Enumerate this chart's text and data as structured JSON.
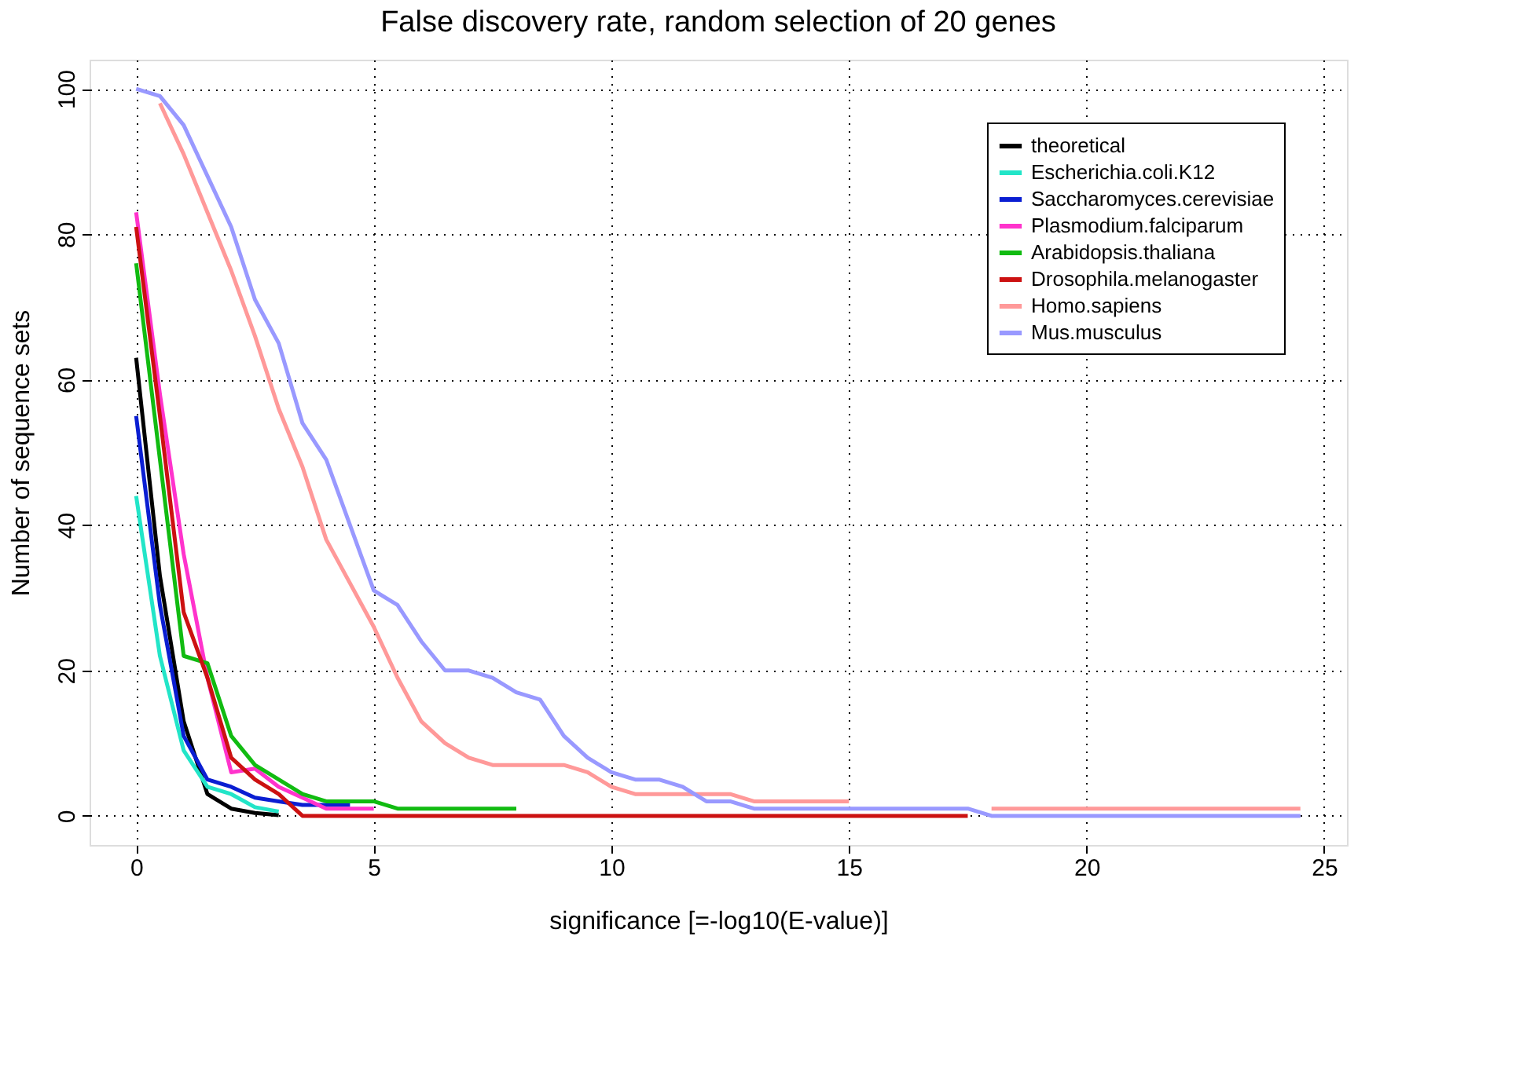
{
  "chart_data": {
    "type": "line",
    "title": "False discovery rate, random selection of  20 genes",
    "xlabel": "significance [=-log10(E-value)]",
    "ylabel": "Number of sequence sets",
    "x": [
      0,
      0.5,
      1,
      1.5,
      2,
      2.5,
      3,
      3.5,
      4,
      4.5,
      5,
      5.5,
      6,
      6.5,
      7,
      7.5,
      8,
      8.5,
      9,
      9.5,
      10,
      10.5,
      11,
      11.5,
      12,
      12.5,
      13,
      13.5,
      14,
      14.5,
      15,
      15.5,
      16,
      16.5,
      17,
      17.5,
      18,
      18.5,
      19,
      19.5,
      20,
      20.5,
      21,
      21.5,
      22,
      22.5,
      23,
      23.5,
      24,
      24.5
    ],
    "series": [
      {
        "name": "theoretical",
        "color": "#000000",
        "values": [
          63,
          33,
          13,
          3,
          1,
          0.4,
          0.1,
          null,
          null,
          null,
          null,
          null,
          null,
          null,
          null,
          null,
          null,
          null,
          null,
          null,
          null,
          null,
          null,
          null,
          null,
          null,
          null,
          null,
          null,
          null,
          null,
          null,
          null,
          null,
          null,
          null,
          null,
          null,
          null,
          null,
          null,
          null,
          null,
          null,
          null,
          null,
          null,
          null,
          null,
          null
        ]
      },
      {
        "name": "Escherichia.coli.K12",
        "color": "#22e5c8",
        "values": [
          44,
          22,
          9,
          4,
          3,
          1.2,
          0.6,
          null,
          null,
          null,
          null,
          null,
          null,
          null,
          null,
          null,
          null,
          null,
          null,
          null,
          null,
          null,
          null,
          null,
          null,
          null,
          null,
          null,
          null,
          null,
          null,
          null,
          null,
          null,
          null,
          null,
          null,
          null,
          null,
          null,
          null,
          null,
          null,
          null,
          null,
          null,
          null,
          null,
          null,
          null
        ]
      },
      {
        "name": "Saccharomyces.cerevisiae",
        "color": "#0a1ed2",
        "values": [
          55,
          29,
          11,
          5,
          4,
          2.5,
          2,
          1.5,
          1.5,
          1.5,
          null,
          null,
          null,
          null,
          null,
          null,
          null,
          null,
          null,
          null,
          null,
          null,
          null,
          null,
          null,
          null,
          null,
          null,
          null,
          null,
          null,
          null,
          null,
          null,
          null,
          null,
          null,
          null,
          null,
          null,
          null,
          null,
          null,
          null,
          null,
          null,
          null,
          null,
          null,
          null
        ]
      },
      {
        "name": "Plasmodium.falciparum",
        "color": "#ff33cc",
        "values": [
          83,
          58,
          36,
          19,
          6,
          6.5,
          4,
          2.5,
          1,
          1,
          1,
          null,
          null,
          null,
          null,
          null,
          null,
          null,
          null,
          null,
          null,
          null,
          null,
          null,
          null,
          null,
          null,
          null,
          null,
          null,
          null,
          null,
          null,
          null,
          null,
          null,
          null,
          null,
          null,
          null,
          null,
          null,
          null,
          null,
          null,
          null,
          null,
          null,
          null,
          null
        ]
      },
      {
        "name": "Arabidopsis.thaliana",
        "color": "#11bb11",
        "values": [
          76,
          49,
          22,
          21,
          11,
          7,
          5,
          3,
          2,
          2,
          2,
          1,
          1,
          1,
          1,
          1,
          1,
          null,
          null,
          null,
          null,
          null,
          null,
          null,
          null,
          null,
          null,
          null,
          null,
          null,
          null,
          null,
          null,
          null,
          null,
          null,
          null,
          null,
          null,
          null,
          null,
          null,
          null,
          null,
          null,
          null,
          null,
          null,
          null,
          null
        ]
      },
      {
        "name": "Drosophila.melanogaster",
        "color": "#cc1111",
        "values": [
          81,
          55,
          28,
          19,
          8,
          5,
          3,
          0,
          0,
          0,
          0,
          0,
          0,
          0,
          0,
          0,
          0,
          0,
          0,
          0,
          0,
          0,
          0,
          0,
          0,
          0,
          0,
          0,
          0,
          0,
          0,
          0,
          0,
          0,
          0,
          0,
          null,
          null,
          null,
          null,
          null,
          null,
          null,
          null,
          null,
          null,
          null,
          null,
          null,
          null
        ]
      },
      {
        "name": "Homo.sapiens",
        "color": "#ff9999",
        "values": [
          null,
          98,
          91,
          83,
          75,
          66,
          56,
          48,
          38,
          32,
          26,
          19,
          13,
          10,
          8,
          7,
          7,
          7,
          7,
          6,
          4,
          3,
          3,
          3,
          3,
          3,
          2,
          2,
          2,
          2,
          2,
          null,
          null,
          null,
          null,
          null,
          1,
          1,
          1,
          1,
          1,
          1,
          1,
          1,
          1,
          1,
          1,
          1,
          1,
          1
        ]
      },
      {
        "name": "Mus.musculus",
        "color": "#9999ff",
        "values": [
          100,
          99,
          95,
          88,
          81,
          71,
          65,
          54,
          49,
          40,
          31,
          29,
          24,
          20,
          20,
          19,
          17,
          16,
          11,
          8,
          6,
          5,
          5,
          4,
          2,
          2,
          1,
          1,
          1,
          1,
          1,
          1,
          1,
          1,
          1,
          1,
          0,
          0,
          0,
          0,
          0,
          0,
          0,
          0,
          0,
          0,
          0,
          0,
          0,
          0
        ]
      }
    ],
    "xlim": [
      -0.98,
      25.48
    ],
    "ylim": [
      -4,
      104
    ],
    "xticks": [
      0,
      5,
      10,
      15,
      20,
      25
    ],
    "yticks": [
      0,
      20,
      40,
      60,
      80,
      100
    ],
    "grid": true,
    "legend": "top right",
    "line_style": "solid",
    "marker": "none"
  }
}
